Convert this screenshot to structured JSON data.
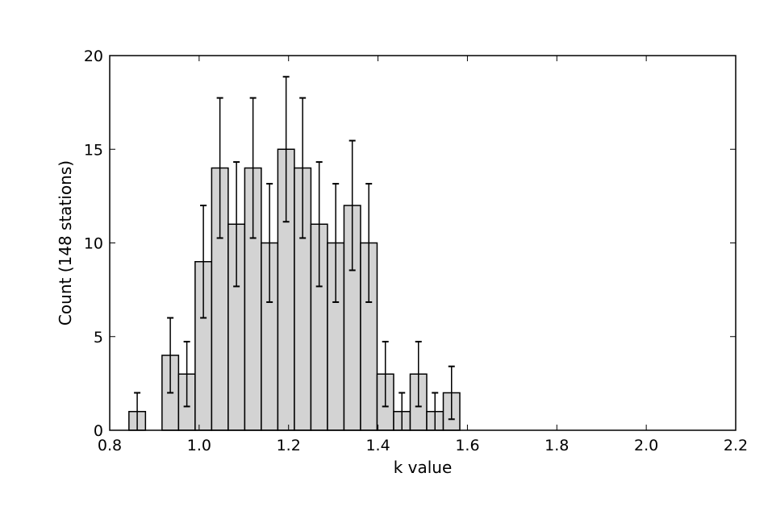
{
  "chart_data": {
    "type": "bar",
    "xlabel": "k value",
    "ylabel": "Count (148 stations)",
    "xlim": [
      0.8,
      2.2
    ],
    "ylim": [
      0,
      20
    ],
    "xticks": [
      "0.8",
      "1.0",
      "1.2",
      "1.4",
      "1.6",
      "1.8",
      "2.0",
      "2.2"
    ],
    "yticks": [
      "0",
      "5",
      "10",
      "15",
      "20"
    ],
    "bin_width": 0.037,
    "bar_color": "#d3d3d3",
    "edge_color": "#000000",
    "bins": [
      {
        "start": 0.806,
        "count": 0
      },
      {
        "start": 0.843,
        "count": 1,
        "err": 1.0
      },
      {
        "start": 0.88,
        "count": 0
      },
      {
        "start": 0.917,
        "count": 4,
        "err": 2.0
      },
      {
        "start": 0.954,
        "count": 3,
        "err": 1.73
      },
      {
        "start": 0.991,
        "count": 9,
        "err": 3.0
      },
      {
        "start": 1.028,
        "count": 14,
        "err": 3.74
      },
      {
        "start": 1.065,
        "count": 11,
        "err": 3.32
      },
      {
        "start": 1.102,
        "count": 14,
        "err": 3.74
      },
      {
        "start": 1.139,
        "count": 10,
        "err": 3.16
      },
      {
        "start": 1.176,
        "count": 15,
        "err": 3.87
      },
      {
        "start": 1.213,
        "count": 14,
        "err": 3.74
      },
      {
        "start": 1.25,
        "count": 11,
        "err": 3.32
      },
      {
        "start": 1.287,
        "count": 10,
        "err": 3.16
      },
      {
        "start": 1.324,
        "count": 12,
        "err": 3.46
      },
      {
        "start": 1.361,
        "count": 10,
        "err": 3.16
      },
      {
        "start": 1.398,
        "count": 3,
        "err": 1.73
      },
      {
        "start": 1.435,
        "count": 1,
        "err": 1.0
      },
      {
        "start": 1.472,
        "count": 3,
        "err": 1.73
      },
      {
        "start": 1.509,
        "count": 1,
        "err": 1.0
      },
      {
        "start": 1.546,
        "count": 2,
        "err": 1.41
      },
      {
        "start": 1.583,
        "count": 0
      },
      {
        "start": 1.62,
        "count": 0
      },
      {
        "start": 1.657,
        "count": 0
      },
      {
        "start": 1.694,
        "count": 0
      },
      {
        "start": 1.731,
        "count": 0
      },
      {
        "start": 1.768,
        "count": 0
      },
      {
        "start": 1.805,
        "count": 0
      },
      {
        "start": 1.842,
        "count": 0
      },
      {
        "start": 1.879,
        "count": 0
      },
      {
        "start": 1.916,
        "count": 0
      },
      {
        "start": 1.953,
        "count": 0
      },
      {
        "start": 1.99,
        "count": 0
      },
      {
        "start": 2.027,
        "count": 0
      },
      {
        "start": 2.064,
        "count": 0
      }
    ]
  }
}
